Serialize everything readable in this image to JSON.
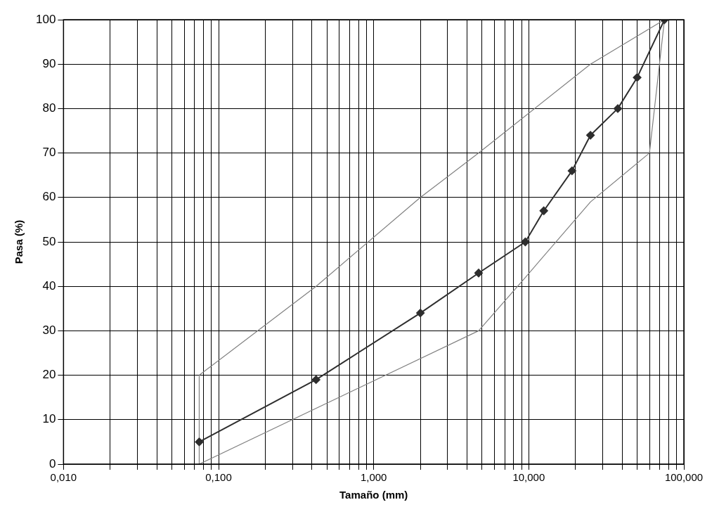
{
  "chart_data": {
    "type": "line",
    "xlabel": "Tamaño (mm)",
    "ylabel": "Pasa (%)",
    "log": "x",
    "grid": true,
    "legend": false,
    "xlim": [
      0.01,
      100
    ],
    "ylim": [
      0,
      100
    ],
    "xticks": [
      {
        "value": 0.01,
        "label": "0,010"
      },
      {
        "value": 0.02,
        "label": null
      },
      {
        "value": 0.03,
        "label": null
      },
      {
        "value": 0.04,
        "label": null
      },
      {
        "value": 0.05,
        "label": null
      },
      {
        "value": 0.06,
        "label": null
      },
      {
        "value": 0.07,
        "label": null
      },
      {
        "value": 0.08,
        "label": null
      },
      {
        "value": 0.09,
        "label": null
      },
      {
        "value": 0.1,
        "label": "0,100"
      },
      {
        "value": 0.2,
        "label": null
      },
      {
        "value": 0.3,
        "label": null
      },
      {
        "value": 0.4,
        "label": null
      },
      {
        "value": 0.5,
        "label": null
      },
      {
        "value": 0.6,
        "label": null
      },
      {
        "value": 0.7,
        "label": null
      },
      {
        "value": 0.8,
        "label": null
      },
      {
        "value": 0.9,
        "label": null
      },
      {
        "value": 1,
        "label": "1,000"
      },
      {
        "value": 2,
        "label": null
      },
      {
        "value": 3,
        "label": null
      },
      {
        "value": 4,
        "label": null
      },
      {
        "value": 5,
        "label": null
      },
      {
        "value": 6,
        "label": null
      },
      {
        "value": 7,
        "label": null
      },
      {
        "value": 8,
        "label": null
      },
      {
        "value": 9,
        "label": null
      },
      {
        "value": 10,
        "label": "10,000"
      },
      {
        "value": 20,
        "label": null
      },
      {
        "value": 30,
        "label": null
      },
      {
        "value": 40,
        "label": null
      },
      {
        "value": 50,
        "label": null
      },
      {
        "value": 60,
        "label": null
      },
      {
        "value": 70,
        "label": null
      },
      {
        "value": 80,
        "label": null
      },
      {
        "value": 90,
        "label": null
      },
      {
        "value": 100,
        "label": "100,000"
      }
    ],
    "yticks": [
      0,
      10,
      20,
      30,
      40,
      50,
      60,
      70,
      80,
      90,
      100
    ],
    "series": [
      {
        "color": "#2e2e2e",
        "marker": "diamond",
        "x": [
          0.075,
          0.425,
          2,
          4.75,
          9.5,
          12.5,
          19,
          25,
          37.5,
          50,
          75
        ],
        "values": [
          5,
          19,
          34,
          43,
          50,
          57,
          66,
          74,
          80,
          87,
          100
        ]
      },
      {
        "color": "#808080",
        "marker": "none",
        "x": [
          0.075,
          0.075,
          0.425,
          2,
          4.75,
          25,
          75
        ],
        "values": [
          0,
          20,
          40,
          60,
          70,
          90,
          100
        ]
      },
      {
        "color": "#808080",
        "marker": "none",
        "x": [
          0.075,
          4.75,
          9.5,
          25,
          60,
          75
        ],
        "values": [
          0,
          30,
          42,
          59,
          70,
          100
        ]
      }
    ]
  }
}
